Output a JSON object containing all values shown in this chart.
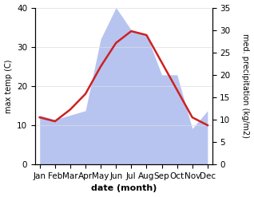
{
  "months": [
    "Jan",
    "Feb",
    "Mar",
    "Apr",
    "May",
    "Jun",
    "Jul",
    "Aug",
    "Sep",
    "Oct",
    "Nov",
    "Dec"
  ],
  "temperature": [
    12,
    11,
    14,
    18,
    25,
    31,
    34,
    33,
    26,
    19,
    12,
    10
  ],
  "precipitation": [
    11,
    10,
    11,
    12,
    28,
    35,
    30,
    29,
    20,
    20,
    8,
    12
  ],
  "temp_color": "#cc2222",
  "precip_color": "#b8c4f0",
  "temp_ylim": [
    0,
    40
  ],
  "precip_ylim": [
    0,
    35
  ],
  "xlabel": "date (month)",
  "ylabel_left": "max temp (C)",
  "ylabel_right": "med. precipitation (kg/m2)",
  "bg_color": "#ffffff",
  "label_fontsize": 8,
  "tick_fontsize": 7.5
}
